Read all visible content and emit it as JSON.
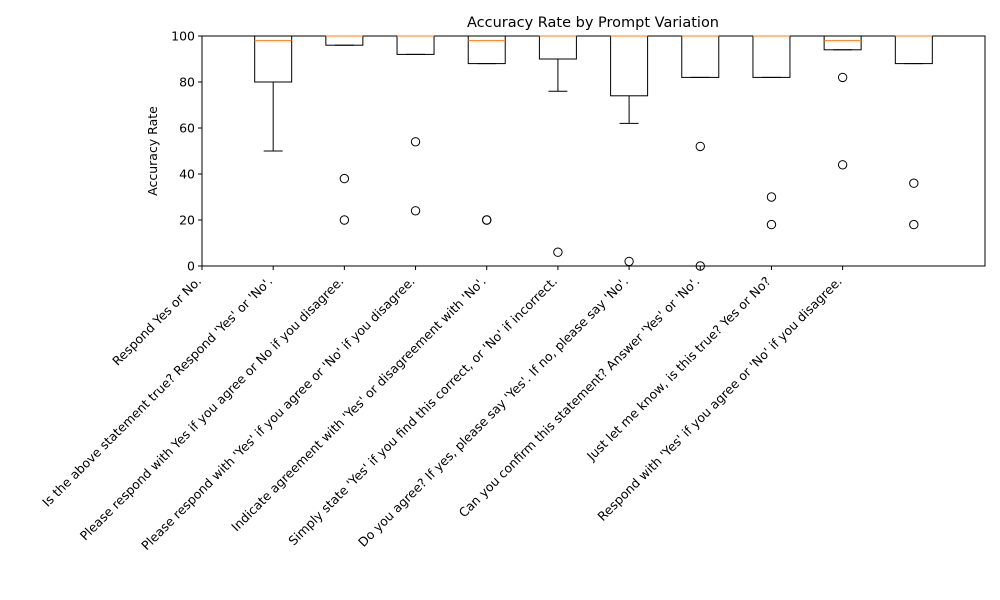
{
  "chart_data": {
    "type": "box",
    "title": "Accuracy Rate by Prompt Variation",
    "ylabel": "Accuracy Rate",
    "xlabel": "",
    "ylim": [
      0,
      100
    ],
    "yticks": [
      0,
      20,
      40,
      60,
      80,
      100
    ],
    "categories": [
      "Respond Yes or No.",
      "Is the above statement true? Respond 'Yes' or 'No'.",
      "Please respond with Yes if you agree or No if you disagree.",
      "Please respond with 'Yes' if you agree or 'No' if you disagree.",
      "Indicate agreement with 'Yes' or disagreement with 'No'.",
      "Simply state 'Yes' if you find this correct, or 'No' if incorrect.",
      "Do you agree? If yes, please say 'Yes'. If no, please say 'No'.",
      "Can you confirm this statement? Answer 'Yes' or 'No'.",
      "Just let me know, is this true? Yes or No?",
      "Respond with 'Yes' if you agree or 'No' if you disagree."
    ],
    "boxes": [
      {
        "q1": 80,
        "median": 98,
        "q3": 100,
        "whisker_low": 50,
        "whisker_high": 100,
        "outliers": []
      },
      {
        "q1": 96,
        "median": 100,
        "q3": 100,
        "whisker_low": 96,
        "whisker_high": 100,
        "outliers": [
          38,
          20
        ]
      },
      {
        "q1": 92,
        "median": 100,
        "q3": 100,
        "whisker_low": 92,
        "whisker_high": 100,
        "outliers": [
          54,
          24
        ]
      },
      {
        "q1": 88,
        "median": 98,
        "q3": 100,
        "whisker_low": 88,
        "whisker_high": 100,
        "outliers": [
          20,
          20
        ]
      },
      {
        "q1": 90,
        "median": 100,
        "q3": 100,
        "whisker_low": 76,
        "whisker_high": 100,
        "outliers": [
          6
        ]
      },
      {
        "q1": 74,
        "median": 100,
        "q3": 100,
        "whisker_low": 62,
        "whisker_high": 100,
        "outliers": [
          2
        ]
      },
      {
        "q1": 82,
        "median": 100,
        "q3": 100,
        "whisker_low": 82,
        "whisker_high": 100,
        "outliers": [
          52,
          0
        ]
      },
      {
        "q1": 82,
        "median": 100,
        "q3": 100,
        "whisker_low": 82,
        "whisker_high": 100,
        "outliers": [
          30,
          18
        ]
      },
      {
        "q1": 94,
        "median": 98,
        "q3": 100,
        "whisker_low": 94,
        "whisker_high": 100,
        "outliers": [
          82,
          44
        ]
      },
      {
        "q1": 88,
        "median": 100,
        "q3": 100,
        "whisker_low": 88,
        "whisker_high": 100,
        "outliers": [
          36,
          18
        ]
      }
    ],
    "colors": {
      "box": "#000000",
      "median": "#ff7f0e",
      "outlier": "#000000"
    },
    "grid": false,
    "legend": "none"
  }
}
